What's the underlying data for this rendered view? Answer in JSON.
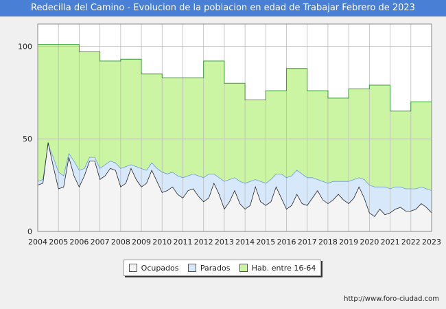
{
  "header": {
    "title": "Redecilla del Camino - Evolucion de la poblacion en edad de Trabajar Febrero de 2023"
  },
  "footer": {
    "source": "http://www.foro-ciudad.com"
  },
  "colors": {
    "hab_fill": "#ccf5a3",
    "hab_line": "#3a9a3a",
    "parados_fill": "#d8e8fb",
    "parados_line": "#6699dd",
    "ocupados_fill": "#f4f4f4",
    "ocupados_line": "#222222",
    "title_bg": "#4a7fd6"
  },
  "chart_data": {
    "type": "area",
    "title": "Redecilla del Camino - Evolucion de la poblacion en edad de Trabajar Febrero de 2023",
    "xlim": [
      2004,
      2023
    ],
    "ylim": [
      0,
      112
    ],
    "yticks": [
      0,
      50,
      100
    ],
    "xticks": [
      2004,
      2005,
      2006,
      2007,
      2008,
      2009,
      2010,
      2011,
      2012,
      2013,
      2014,
      2015,
      2016,
      2017,
      2018,
      2019,
      2020,
      2021,
      2022,
      2023
    ],
    "grid": true,
    "legend_placement": "bottom",
    "series": [
      {
        "name": "Hab. entre 16-64",
        "step": true,
        "x": [
          2004,
          2005,
          2006,
          2007,
          2008,
          2009,
          2010,
          2011,
          2012,
          2013,
          2014,
          2015,
          2016,
          2017,
          2018,
          2019,
          2020,
          2021,
          2022
        ],
        "values": [
          101,
          101,
          97,
          92,
          93,
          85,
          83,
          83,
          92,
          80,
          71,
          76,
          88,
          76,
          72,
          77,
          79,
          65,
          70
        ]
      },
      {
        "name": "Parados",
        "x": [
          2004.0,
          2004.25,
          2004.5,
          2004.75,
          2005.0,
          2005.25,
          2005.5,
          2005.75,
          2006.0,
          2006.25,
          2006.5,
          2006.75,
          2007.0,
          2007.25,
          2007.5,
          2007.75,
          2008.0,
          2008.25,
          2008.5,
          2008.75,
          2009.0,
          2009.25,
          2009.5,
          2009.75,
          2010.0,
          2010.25,
          2010.5,
          2010.75,
          2011.0,
          2011.25,
          2011.5,
          2011.75,
          2012.0,
          2012.25,
          2012.5,
          2012.75,
          2013.0,
          2013.25,
          2013.5,
          2013.75,
          2014.0,
          2014.25,
          2014.5,
          2014.75,
          2015.0,
          2015.25,
          2015.5,
          2015.75,
          2016.0,
          2016.25,
          2016.5,
          2016.75,
          2017.0,
          2017.25,
          2017.5,
          2017.75,
          2018.0,
          2018.25,
          2018.5,
          2018.75,
          2019.0,
          2019.25,
          2019.5,
          2019.75,
          2020.0,
          2020.25,
          2020.5,
          2020.75,
          2021.0,
          2021.25,
          2021.5,
          2021.75,
          2022.0,
          2022.25,
          2022.5,
          2022.75,
          2023.0
        ],
        "values": [
          27,
          28,
          47,
          40,
          32,
          30,
          42,
          38,
          33,
          34,
          40,
          40,
          34,
          36,
          38,
          37,
          34,
          35,
          36,
          35,
          34,
          33,
          37,
          34,
          32,
          31,
          32,
          30,
          29,
          30,
          31,
          30,
          29,
          31,
          31,
          29,
          27,
          28,
          29,
          27,
          26,
          27,
          28,
          27,
          26,
          28,
          31,
          31,
          29,
          30,
          33,
          31,
          29,
          29,
          28,
          27,
          26,
          27,
          27,
          27,
          27,
          28,
          29,
          28,
          25,
          24,
          24,
          24,
          23,
          24,
          24,
          23,
          23,
          23,
          24,
          23,
          22
        ]
      },
      {
        "name": "Ocupados",
        "x": [
          2004.0,
          2004.25,
          2004.5,
          2004.75,
          2005.0,
          2005.25,
          2005.5,
          2005.75,
          2006.0,
          2006.25,
          2006.5,
          2006.75,
          2007.0,
          2007.25,
          2007.5,
          2007.75,
          2008.0,
          2008.25,
          2008.5,
          2008.75,
          2009.0,
          2009.25,
          2009.5,
          2009.75,
          2010.0,
          2010.25,
          2010.5,
          2010.75,
          2011.0,
          2011.25,
          2011.5,
          2011.75,
          2012.0,
          2012.25,
          2012.5,
          2012.75,
          2013.0,
          2013.25,
          2013.5,
          2013.75,
          2014.0,
          2014.25,
          2014.5,
          2014.75,
          2015.0,
          2015.25,
          2015.5,
          2015.75,
          2016.0,
          2016.25,
          2016.5,
          2016.75,
          2017.0,
          2017.25,
          2017.5,
          2017.75,
          2018.0,
          2018.25,
          2018.5,
          2018.75,
          2019.0,
          2019.25,
          2019.5,
          2019.75,
          2020.0,
          2020.25,
          2020.5,
          2020.75,
          2021.0,
          2021.25,
          2021.5,
          2021.75,
          2022.0,
          2022.25,
          2022.5,
          2022.75,
          2023.0
        ],
        "values": [
          25,
          26,
          48,
          35,
          23,
          24,
          40,
          30,
          24,
          30,
          38,
          38,
          28,
          30,
          34,
          33,
          24,
          26,
          34,
          28,
          24,
          26,
          33,
          27,
          21,
          22,
          24,
          20,
          18,
          22,
          23,
          19,
          16,
          18,
          26,
          20,
          12,
          16,
          22,
          15,
          12,
          14,
          24,
          16,
          14,
          16,
          24,
          18,
          12,
          14,
          20,
          15,
          14,
          18,
          22,
          17,
          15,
          17,
          20,
          17,
          15,
          18,
          24,
          18,
          10,
          8,
          12,
          9,
          10,
          12,
          13,
          11,
          11,
          12,
          15,
          13,
          10
        ]
      }
    ]
  }
}
